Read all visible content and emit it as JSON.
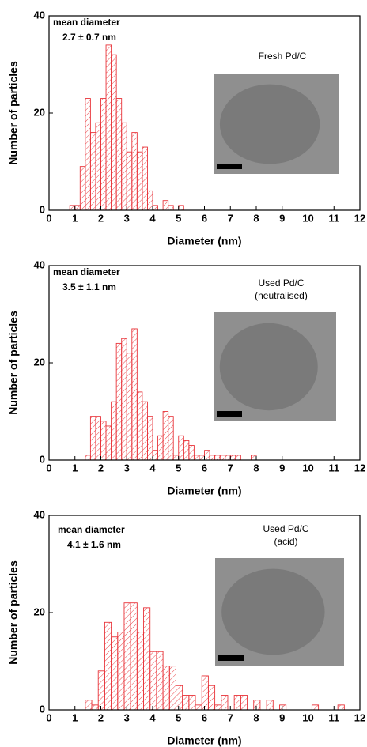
{
  "chart_data": [
    {
      "type": "histogram",
      "color": "#e8343a",
      "xlabel": "Diameter (nm)",
      "ylabel": "Number of particles",
      "annotations": [
        "mean diameter",
        "2.7 ± 0.7 nm"
      ],
      "label": [
        "Fresh Pd/C"
      ],
      "xlim": [
        0,
        12
      ],
      "ylim": [
        0,
        40
      ],
      "xticks": [
        0,
        1,
        2,
        3,
        4,
        5,
        6,
        7,
        8,
        9,
        10,
        11,
        12
      ],
      "yticks": [
        0,
        20,
        40
      ],
      "bins": [
        0.8,
        1.0,
        1.2,
        1.4,
        1.6,
        1.8,
        2.0,
        2.2,
        2.4,
        2.6,
        2.8,
        3.0,
        3.2,
        3.4,
        3.6,
        3.8,
        4.0,
        4.2,
        4.4,
        4.6,
        4.8,
        5.0,
        5.2
      ],
      "values": [
        1,
        1,
        9,
        23,
        16,
        18,
        23,
        34,
        32,
        23,
        18,
        12,
        16,
        12,
        13,
        4,
        1,
        0,
        2,
        1,
        0,
        1
      ]
    },
    {
      "type": "histogram",
      "color": "#e8343a",
      "xlabel": "Diameter (nm)",
      "ylabel": "Number of particles",
      "annotations": [
        "mean diameter",
        "3.5 ± 1.1 nm"
      ],
      "label": [
        "Used Pd/C",
        "(neutralised)"
      ],
      "xlim": [
        0,
        12
      ],
      "ylim": [
        0,
        40
      ],
      "xticks": [
        0,
        1,
        2,
        3,
        4,
        5,
        6,
        7,
        8,
        9,
        10,
        11,
        12
      ],
      "yticks": [
        0,
        20,
        40
      ],
      "bins": [
        1.4,
        1.6,
        1.8,
        2.0,
        2.2,
        2.4,
        2.6,
        2.8,
        3.0,
        3.2,
        3.4,
        3.6,
        3.8,
        4.0,
        4.2,
        4.4,
        4.6,
        4.8,
        5.0,
        5.2,
        5.4,
        5.6,
        5.8,
        6.0,
        6.2,
        6.4,
        6.6,
        6.8,
        7.0,
        7.2,
        7.4,
        7.6,
        7.8,
        8.0
      ],
      "values": [
        1,
        9,
        9,
        8,
        7,
        12,
        24,
        25,
        22,
        27,
        14,
        12,
        9,
        2,
        5,
        10,
        9,
        1,
        5,
        4,
        3,
        1,
        1,
        2,
        1,
        1,
        1,
        1,
        1,
        1,
        0,
        0,
        1
      ]
    },
    {
      "type": "histogram",
      "color": "#e8343a",
      "xlabel": "Diameter (nm)",
      "ylabel": "Number of particles",
      "annotations": [
        "mean diameter",
        "4.1 ± 1.6 nm"
      ],
      "label": [
        "Used Pd/C",
        "(acid)"
      ],
      "xlim": [
        0,
        12
      ],
      "ylim": [
        0,
        40
      ],
      "xticks": [
        0,
        1,
        2,
        3,
        4,
        5,
        6,
        7,
        8,
        9,
        10,
        11,
        12
      ],
      "yticks": [
        0,
        20,
        40
      ],
      "bins": [
        1.4,
        1.65,
        1.9,
        2.15,
        2.4,
        2.65,
        2.9,
        3.15,
        3.4,
        3.65,
        3.9,
        4.15,
        4.4,
        4.65,
        4.9,
        5.15,
        5.4,
        5.65,
        5.9,
        6.15,
        6.4,
        6.65,
        6.9,
        7.15,
        7.4,
        7.65,
        7.9,
        8.15,
        8.4,
        8.65,
        8.9,
        9.15,
        9.4,
        9.65,
        9.9,
        10.15,
        10.4,
        10.65,
        10.9,
        11.15,
        11.4
      ],
      "values": [
        2,
        1,
        8,
        18,
        15,
        16,
        22,
        22,
        16,
        21,
        12,
        12,
        9,
        9,
        5,
        3,
        3,
        1,
        7,
        5,
        1,
        3,
        0,
        3,
        3,
        0,
        2,
        0,
        2,
        0,
        1,
        0,
        0,
        0,
        0,
        1,
        0,
        0,
        0,
        1
      ]
    }
  ]
}
